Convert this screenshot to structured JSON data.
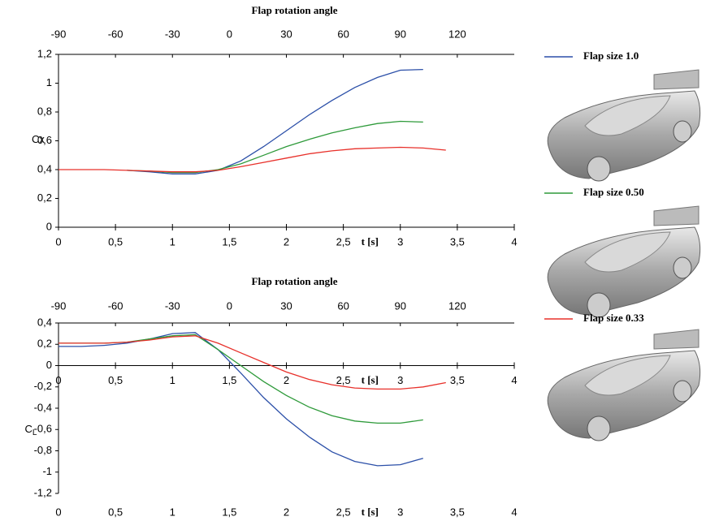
{
  "chart_data": [
    {
      "type": "line",
      "x2label": "Flap rotation angle",
      "xlabel": "t [s]",
      "ylabel": "Cx",
      "x": [
        0,
        0.2,
        0.4,
        0.6,
        0.8,
        1.0,
        1.2,
        1.4,
        1.6,
        1.8,
        2.0,
        2.2,
        2.4,
        2.6,
        2.8,
        3.0,
        3.2,
        3.4
      ],
      "xlim": [
        0,
        4
      ],
      "xticks": [
        0,
        {
          "value": 0.5,
          "label": "0,5"
        },
        1,
        {
          "value": 1.5,
          "label": "1,5"
        },
        2,
        {
          "value": 2.5,
          "label": "2,5"
        },
        3,
        {
          "value": 3.5,
          "label": "3,5"
        },
        4
      ],
      "x2lim": [
        -90,
        150
      ],
      "x2ticks": [
        -90,
        -60,
        -30,
        0,
        30,
        60,
        90,
        120
      ],
      "ylim": [
        0,
        1.2
      ],
      "yticks": [
        0,
        {
          "value": 0.2,
          "label": "0,2"
        },
        {
          "value": 0.4,
          "label": "0,4"
        },
        {
          "value": 0.6,
          "label": "0,6"
        },
        {
          "value": 0.8,
          "label": "0,8"
        },
        1,
        {
          "value": 1.2,
          "label": "1,2"
        }
      ],
      "series": [
        {
          "name": "Flap size 1.0",
          "color": "#2b4fa8",
          "values": [
            null,
            null,
            null,
            0.395,
            0.385,
            0.37,
            0.37,
            0.395,
            0.46,
            0.56,
            0.67,
            0.78,
            0.88,
            0.97,
            1.04,
            1.09,
            1.095,
            null
          ]
        },
        {
          "name": "Flap size 0.50",
          "color": "#2e9a3a",
          "values": [
            null,
            null,
            null,
            0.395,
            0.39,
            0.38,
            0.38,
            0.4,
            0.44,
            0.5,
            0.56,
            0.61,
            0.655,
            0.69,
            0.72,
            0.735,
            0.73,
            null
          ]
        },
        {
          "name": "Flap size 0.33",
          "color": "#e8302a",
          "values": [
            0.4,
            0.4,
            0.4,
            0.395,
            0.39,
            0.385,
            0.385,
            0.395,
            0.42,
            0.45,
            0.48,
            0.51,
            0.53,
            0.545,
            0.55,
            0.555,
            0.55,
            0.535
          ]
        }
      ]
    },
    {
      "type": "line",
      "x2label": "Flap rotation angle",
      "xlabel": "t [s]",
      "ylabel": "C",
      "ylabel_sub": "L",
      "x": [
        0,
        0.2,
        0.4,
        0.6,
        0.8,
        1.0,
        1.2,
        1.4,
        1.6,
        1.8,
        2.0,
        2.2,
        2.4,
        2.6,
        2.8,
        3.0,
        3.2,
        3.4
      ],
      "xlim": [
        0,
        4
      ],
      "xticks": [
        0,
        {
          "value": 0.5,
          "label": "0,5"
        },
        1,
        {
          "value": 1.5,
          "label": "1,5"
        },
        2,
        {
          "value": 2.5,
          "label": "2,5"
        },
        3,
        {
          "value": 3.5,
          "label": "3,5"
        },
        4
      ],
      "x2lim": [
        -90,
        150
      ],
      "x2ticks": [
        -90,
        -60,
        -30,
        0,
        30,
        60,
        90,
        120
      ],
      "ylim": [
        -1.2,
        0.4
      ],
      "yticks": [
        {
          "value": -1.2,
          "label": "-1,2"
        },
        -1,
        {
          "value": -0.8,
          "label": "-0,8"
        },
        {
          "value": -0.6,
          "label": "-0,6"
        },
        {
          "value": -0.4,
          "label": "-0,4"
        },
        {
          "value": -0.2,
          "label": "-0,2"
        },
        0,
        {
          "value": 0.2,
          "label": "0,2"
        },
        {
          "value": 0.4,
          "label": "0,4"
        }
      ],
      "series": [
        {
          "color": "#2b4fa8",
          "values": [
            0.18,
            0.18,
            0.19,
            0.21,
            0.25,
            0.3,
            0.31,
            0.15,
            -0.07,
            -0.3,
            -0.5,
            -0.67,
            -0.81,
            -0.9,
            -0.94,
            -0.93,
            -0.87,
            null
          ]
        },
        {
          "color": "#2e9a3a",
          "values": [
            0.21,
            0.21,
            0.21,
            0.22,
            0.25,
            0.28,
            0.29,
            0.15,
            0.0,
            -0.15,
            -0.28,
            -0.39,
            -0.47,
            -0.52,
            -0.54,
            -0.54,
            -0.51,
            null
          ]
        },
        {
          "color": "#e8302a",
          "values": [
            0.21,
            0.21,
            0.21,
            0.22,
            0.24,
            0.27,
            0.28,
            0.21,
            0.12,
            0.03,
            -0.06,
            -0.13,
            -0.18,
            -0.21,
            -0.22,
            -0.22,
            -0.2,
            -0.16
          ]
        }
      ]
    }
  ]
}
